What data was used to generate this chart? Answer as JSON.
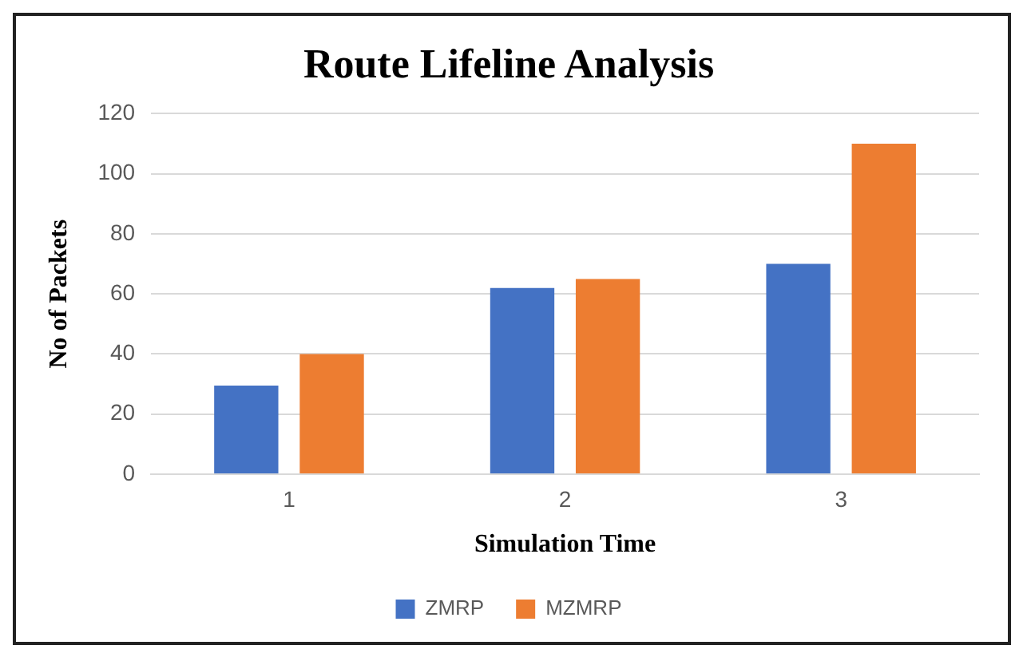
{
  "chart_data": {
    "type": "bar",
    "title": "Route Lifeline Analysis",
    "xlabel": "Simulation Time",
    "ylabel": "No of Packets",
    "categories": [
      "1",
      "2",
      "3"
    ],
    "series": [
      {
        "name": "ZMRP",
        "color": "#4472c4",
        "values": [
          29.5,
          62,
          70
        ]
      },
      {
        "name": "MZMRP",
        "color": "#ed7d31",
        "values": [
          40,
          65,
          110
        ]
      }
    ],
    "ylim": [
      0,
      120
    ],
    "yticks": [
      0,
      20,
      40,
      60,
      80,
      100,
      120
    ],
    "grid": "y",
    "legend": "bottom"
  }
}
